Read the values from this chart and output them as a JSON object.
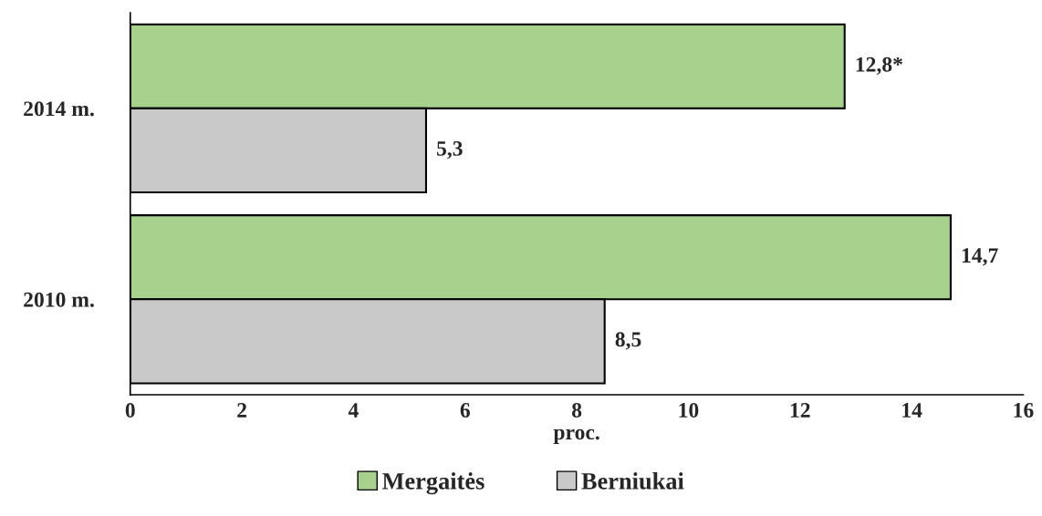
{
  "chart_data": {
    "type": "bar",
    "orientation": "horizontal",
    "categories": [
      "2014 m.",
      "2010 m."
    ],
    "xlabel": "proc.",
    "xlim": [
      0,
      16
    ],
    "xticks": [
      0,
      2,
      4,
      6,
      8,
      10,
      12,
      14,
      16
    ],
    "series": [
      {
        "name": "Mergaitės",
        "color": "#a9d18e",
        "values": [
          12.8,
          14.7
        ],
        "value_labels": [
          "12,8*",
          "14,7"
        ]
      },
      {
        "name": "Berniukai",
        "color": "#c9c9c9",
        "values": [
          5.3,
          8.5
        ],
        "value_labels": [
          "5,3",
          "8,5"
        ]
      }
    ],
    "legend": "bottom",
    "grid": false
  }
}
